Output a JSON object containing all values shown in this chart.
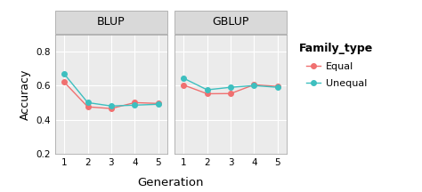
{
  "panels": [
    "BLUP",
    "GBLUP"
  ],
  "generations": [
    1,
    2,
    3,
    4,
    5
  ],
  "blup_equal": [
    0.62,
    0.475,
    0.465,
    0.5,
    0.495
  ],
  "blup_unequal": [
    0.668,
    0.5,
    0.48,
    0.485,
    0.49
  ],
  "gblup_equal": [
    0.603,
    0.552,
    0.553,
    0.605,
    0.595
  ],
  "gblup_unequal": [
    0.643,
    0.575,
    0.59,
    0.6,
    0.59
  ],
  "color_equal": "#f07070",
  "color_unequal": "#3dbfbf",
  "ylim": [
    0.2,
    0.9
  ],
  "yticks": [
    0.2,
    0.4,
    0.6,
    0.8
  ],
  "xlabel": "Generation",
  "ylabel": "Accuracy",
  "legend_title": "Family_type",
  "legend_labels": [
    "Equal",
    "Unequal"
  ],
  "strip_bg": "#d9d9d9",
  "strip_edge": "#b0b0b0",
  "plot_bg": "#ebebeb",
  "grid_color": "#ffffff",
  "marker": "o",
  "markersize": 4,
  "linewidth": 1.0
}
